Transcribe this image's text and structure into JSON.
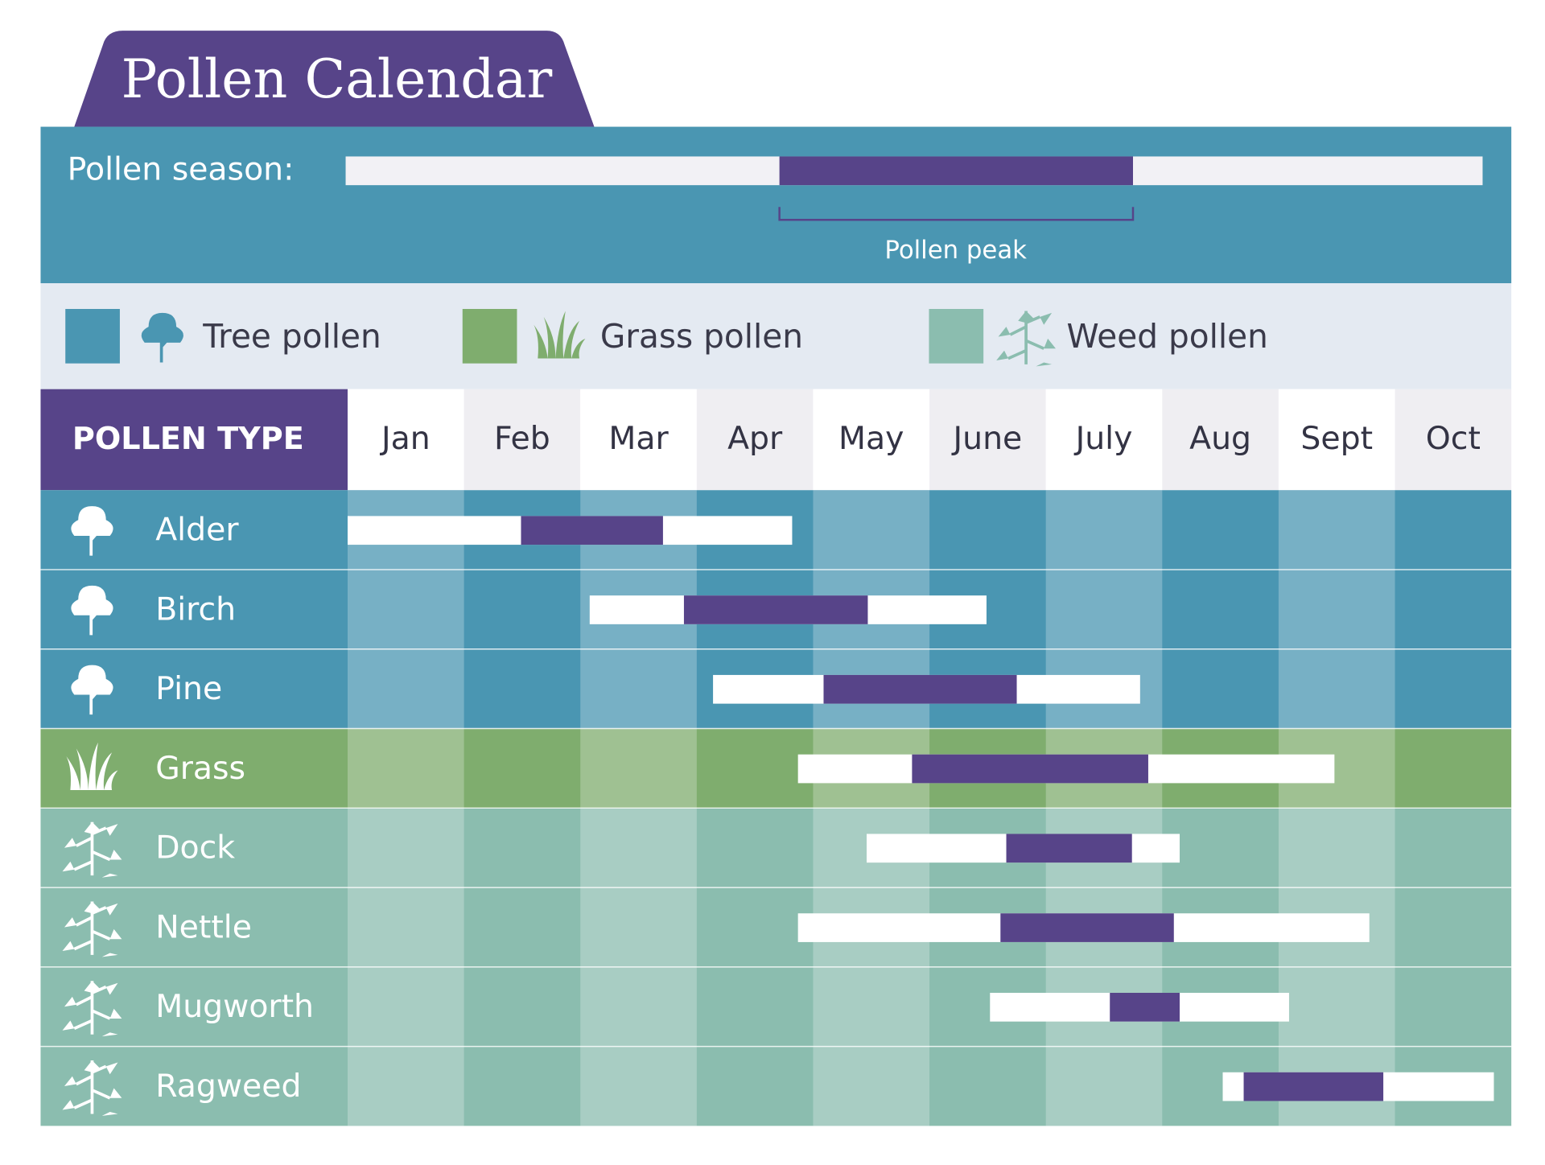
{
  "chart_data": {
    "type": "gantt",
    "title": "Pollen Calendar",
    "season_label": "Pollen season:",
    "peak_label": "Pollen peak",
    "row_header": "POLLEN TYPE",
    "categories": [
      "Jan",
      "Feb",
      "Mar",
      "Apr",
      "May",
      "June",
      "July",
      "Aug",
      "Sept",
      "Oct"
    ],
    "xlim": [
      0,
      10
    ],
    "season_color": "#ffffff",
    "peak_color": "#574489",
    "legend": [
      {
        "name": "Tree pollen",
        "color": "#4a96b2"
      },
      {
        "name": "Grass pollen",
        "color": "#7fad6e"
      },
      {
        "name": "Weed pollen",
        "color": "#8bbdaf"
      }
    ],
    "rows": [
      {
        "name": "Alder",
        "group": 0,
        "season": [
          0,
          3.82
        ],
        "peak": [
          1.49,
          2.71
        ]
      },
      {
        "name": "Birch",
        "group": 0,
        "season": [
          2.08,
          5.49
        ],
        "peak": [
          2.89,
          4.47
        ]
      },
      {
        "name": "Pine",
        "group": 0,
        "season": [
          3.14,
          6.81
        ],
        "peak": [
          4.09,
          5.75
        ]
      },
      {
        "name": "Grass",
        "group": 1,
        "season": [
          3.87,
          8.48
        ],
        "peak": [
          4.85,
          6.88
        ]
      },
      {
        "name": "Dock",
        "group": 2,
        "season": [
          4.46,
          7.15
        ],
        "peak": [
          5.66,
          6.74
        ]
      },
      {
        "name": "Nettle",
        "group": 2,
        "season": [
          3.87,
          8.78
        ],
        "peak": [
          5.61,
          7.1
        ]
      },
      {
        "name": "Mugworth",
        "group": 2,
        "season": [
          5.52,
          8.09
        ],
        "peak": [
          6.55,
          7.15
        ]
      },
      {
        "name": "Ragweed",
        "group": 2,
        "season": [
          7.52,
          9.85
        ],
        "peak": [
          7.7,
          8.9
        ]
      }
    ]
  }
}
